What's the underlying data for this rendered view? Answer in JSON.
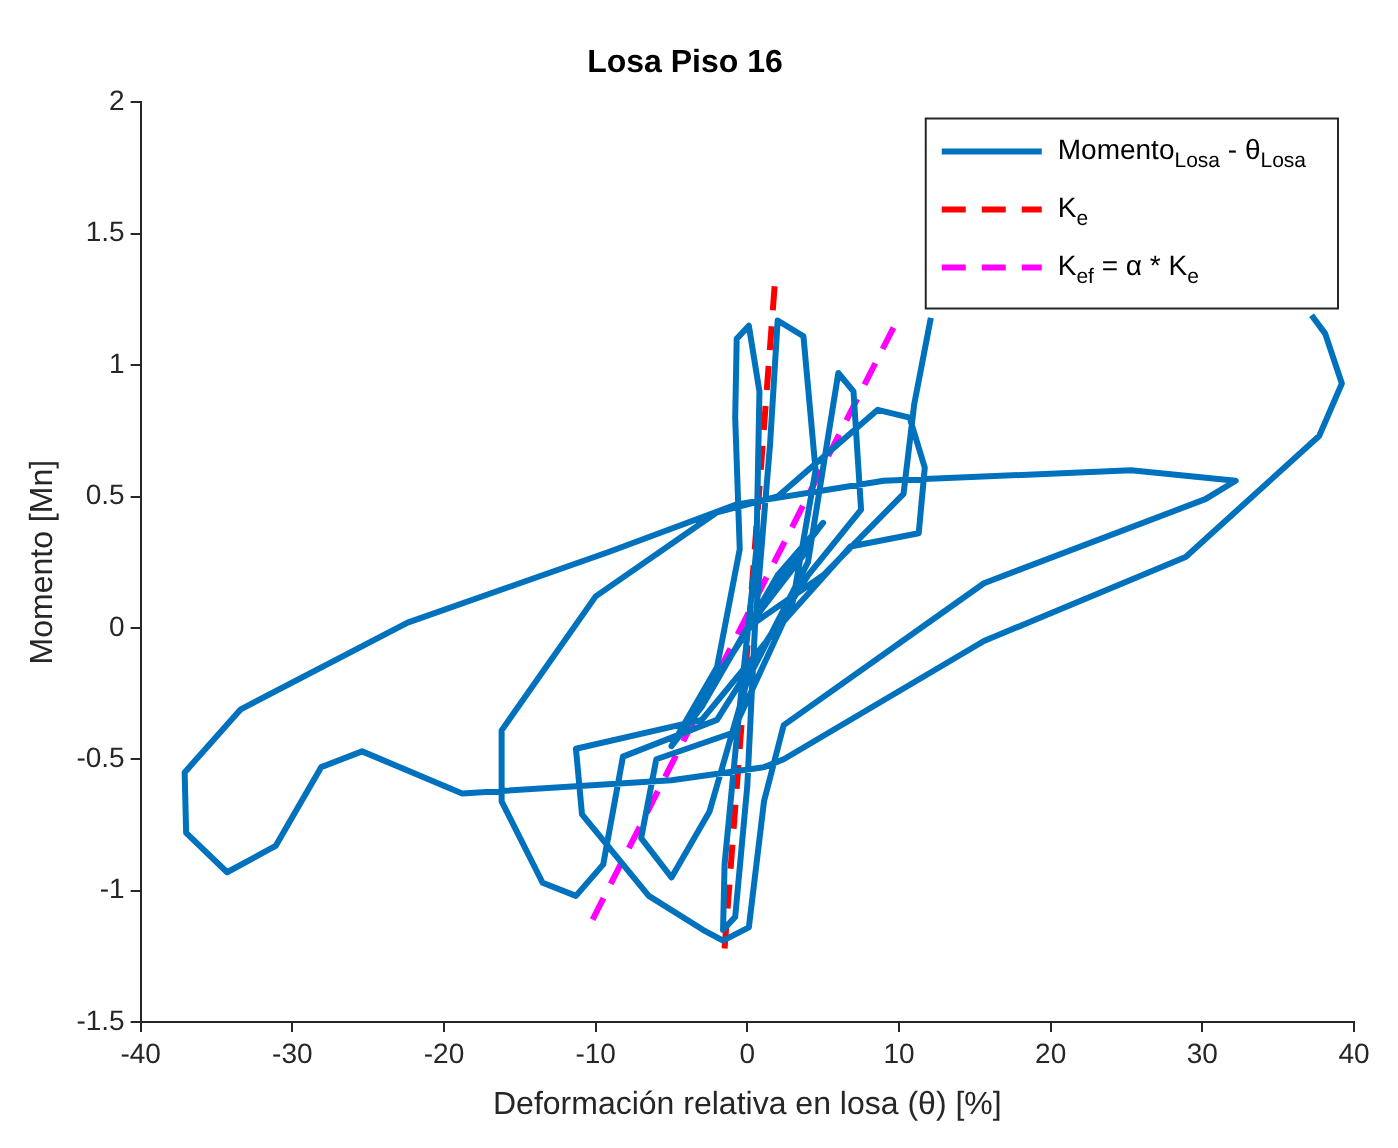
{
  "chart_data": {
    "type": "line",
    "title": "Losa Piso 16",
    "xlabel": "Deformación relativa en losa (θ) [%]",
    "ylabel": "Momento [Mn]",
    "xlim": [
      -40,
      40
    ],
    "xticks": [
      -40,
      -30,
      -20,
      -10,
      0,
      10,
      20,
      30,
      40
    ],
    "ylim": [
      -1.5,
      2
    ],
    "yticks": [
      -1.5,
      -1,
      -0.5,
      0,
      0.5,
      1,
      1.5,
      2
    ],
    "grid": false,
    "legend": "top right",
    "marker": "none",
    "series": [
      {
        "name": "Momento$_{Losa}$ - θ$_{Losa}$",
        "color": "#0072bd",
        "line_style": "solid",
        "x": [
          0,
          2,
          4,
          1,
          -2,
          -4,
          -1,
          3,
          5,
          2,
          -3,
          -5,
          -2,
          -0.5,
          -0.8,
          -0.7,
          0.1,
          0.8,
          0.6,
          -0.5,
          -1.5,
          -1.6,
          -0.8,
          0,
          0.5,
          1.5,
          2,
          3.7,
          4.5,
          3,
          -1,
          -6,
          -7,
          -5,
          -2.5,
          0,
          4,
          6,
          7,
          7.5,
          4,
          -2,
          -8.2,
          -9.5,
          -11.3,
          -13.5,
          -16.2,
          -16.2,
          -10,
          -2,
          2,
          8.6,
          10.7,
          11.7,
          11.3,
          6.8,
          2,
          -3,
          -11.3,
          -10.9,
          -6.5,
          -2.9,
          -1.6,
          0.1,
          1.1,
          2.4,
          15.6,
          30.2,
          32.2,
          25.3,
          9,
          -0.7,
          -9.1,
          -22.4,
          -33.4,
          -37.1,
          -37,
          -34.3,
          -31.1,
          -28.1,
          -25.4,
          -18.8,
          -5,
          1.1,
          2.4,
          15.6,
          28.9,
          37.7,
          39.2,
          38.1,
          37.2,
          24.6,
          12.1,
          11,
          10.3,
          5,
          0
        ],
        "values": [
          0,
          0.15,
          0.3,
          0.1,
          -0.2,
          -0.35,
          -0.1,
          0.25,
          0.4,
          0.2,
          -0.3,
          -0.45,
          -0.15,
          0.3,
          0.8,
          1.1,
          1.15,
          0.9,
          0.3,
          -0.3,
          -0.9,
          -1.15,
          -1.1,
          -0.6,
          0,
          0.7,
          1.17,
          1.11,
          0.6,
          0.1,
          -0.4,
          -0.5,
          -0.8,
          -0.95,
          -0.7,
          -0.2,
          0.25,
          0.97,
          0.9,
          0.45,
          0.2,
          -0.35,
          -0.49,
          -0.9,
          -1.02,
          -0.97,
          -0.66,
          -0.39,
          0.12,
          0.44,
          0.5,
          0.83,
          0.8,
          0.61,
          0.36,
          0.31,
          0,
          -0.35,
          -0.46,
          -0.71,
          -1.02,
          -1.15,
          -1.19,
          -1.14,
          -0.66,
          -0.37,
          0.17,
          0.49,
          0.56,
          0.6,
          0.56,
          0.47,
          0.29,
          0.02,
          -0.31,
          -0.55,
          -0.78,
          -0.93,
          -0.83,
          -0.53,
          -0.47,
          -0.63,
          -0.58,
          -0.53,
          -0.5,
          -0.05,
          0.27,
          0.73,
          0.93,
          1.12,
          1.19,
          null,
          1.18,
          0.85,
          0.51,
          0.2,
          0
        ]
      },
      {
        "name": "K$_{e}$",
        "color": "#ff0000",
        "line_style": "dashed",
        "x": [
          -1.5,
          1.8
        ],
        "values": [
          -1.22,
          1.3
        ]
      },
      {
        "name": "K$_{ef}$ = α * K$_{e}$",
        "color": "#ff00ff",
        "line_style": "dashed",
        "x": [
          -10.2,
          9.7
        ],
        "values": [
          -1.11,
          1.15
        ]
      }
    ]
  }
}
